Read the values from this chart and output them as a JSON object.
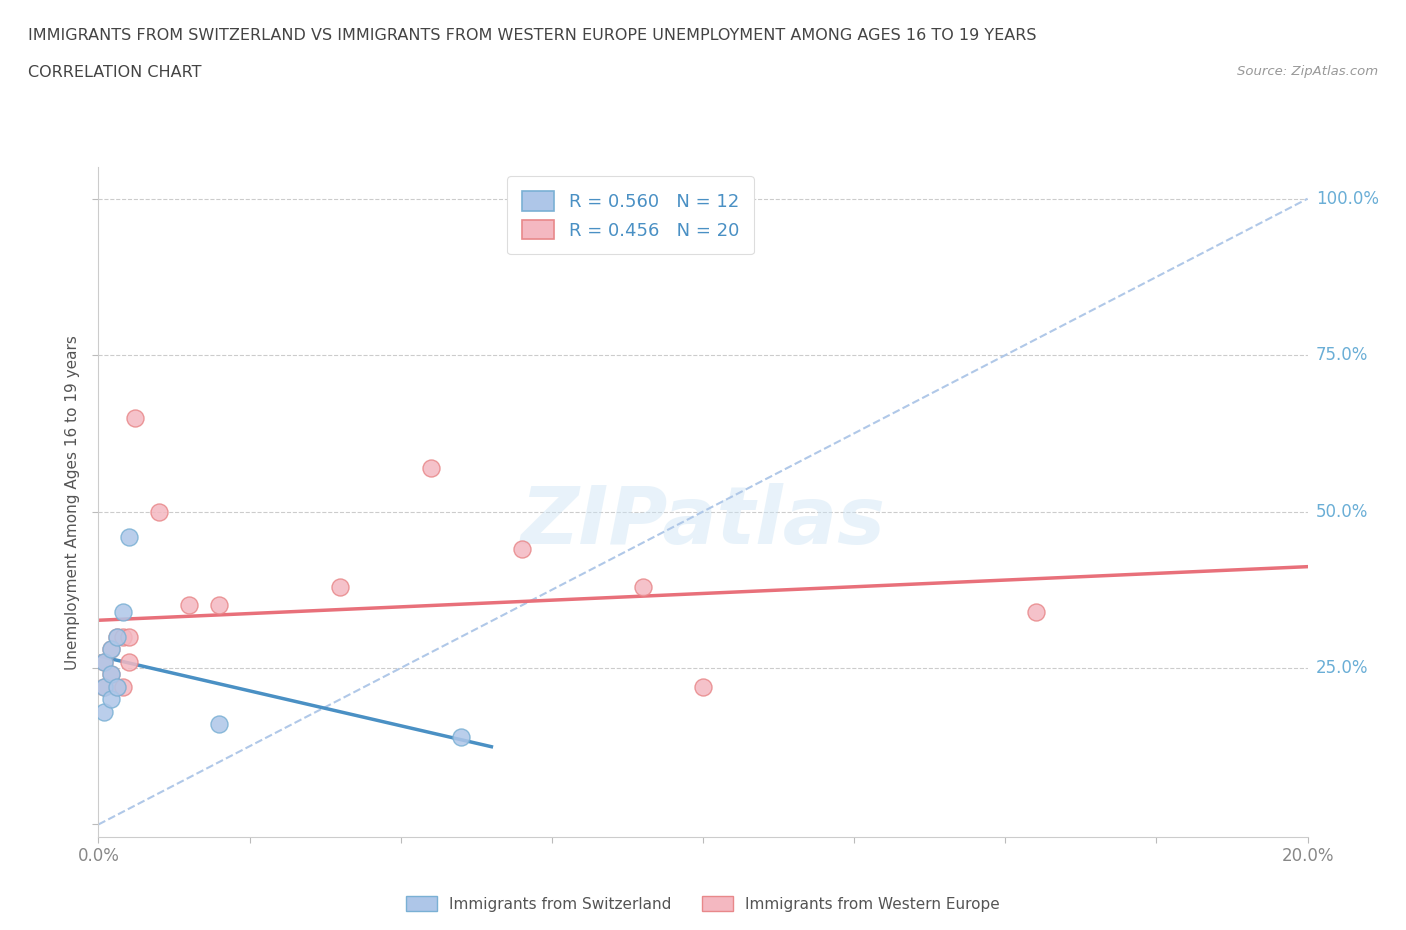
{
  "title_line1": "IMMIGRANTS FROM SWITZERLAND VS IMMIGRANTS FROM WESTERN EUROPE UNEMPLOYMENT AMONG AGES 16 TO 19 YEARS",
  "title_line2": "CORRELATION CHART",
  "source": "Source: ZipAtlas.com",
  "ylabel": "Unemployment Among Ages 16 to 19 years",
  "xlim": [
    0.0,
    0.2
  ],
  "ylim": [
    -0.02,
    1.05
  ],
  "ytick_positions": [
    0.0,
    0.25,
    0.5,
    0.75,
    1.0
  ],
  "ytick_labels": [
    "",
    "25.0%",
    "50.0%",
    "75.0%",
    "100.0%"
  ],
  "swiss_color": "#aec6e8",
  "swiss_edge_color": "#7ab0d4",
  "swiss_line_color": "#4a90c4",
  "western_color": "#f4b8c1",
  "western_edge_color": "#e8888a",
  "western_line_color": "#e8707a",
  "diagonal_color": "#b0c8e8",
  "grid_color": "#cccccc",
  "watermark": "ZIPatlas",
  "legend_R_swiss": "R = 0.560",
  "legend_N_swiss": "N = 12",
  "legend_R_western": "R = 0.456",
  "legend_N_western": "N = 20",
  "swiss_x": [
    0.001,
    0.001,
    0.001,
    0.002,
    0.002,
    0.002,
    0.003,
    0.003,
    0.004,
    0.005,
    0.02,
    0.06
  ],
  "swiss_y": [
    0.18,
    0.22,
    0.26,
    0.2,
    0.24,
    0.28,
    0.3,
    0.22,
    0.34,
    0.46,
    0.16,
    0.14
  ],
  "western_x": [
    0.001,
    0.001,
    0.002,
    0.002,
    0.003,
    0.003,
    0.004,
    0.004,
    0.005,
    0.005,
    0.006,
    0.01,
    0.015,
    0.02,
    0.04,
    0.055,
    0.07,
    0.09,
    0.1,
    0.155
  ],
  "western_y": [
    0.22,
    0.26,
    0.24,
    0.28,
    0.3,
    0.22,
    0.3,
    0.22,
    0.3,
    0.26,
    0.65,
    0.5,
    0.35,
    0.35,
    0.38,
    0.57,
    0.44,
    0.38,
    0.22,
    0.34
  ],
  "bg_color": "#ffffff",
  "title_color": "#444444",
  "axis_label_color": "#555555",
  "tick_label_color": "#888888",
  "right_label_color": "#6aaed6",
  "legend_label_color": "#4a90c4",
  "bottom_legend_color": "#555555"
}
